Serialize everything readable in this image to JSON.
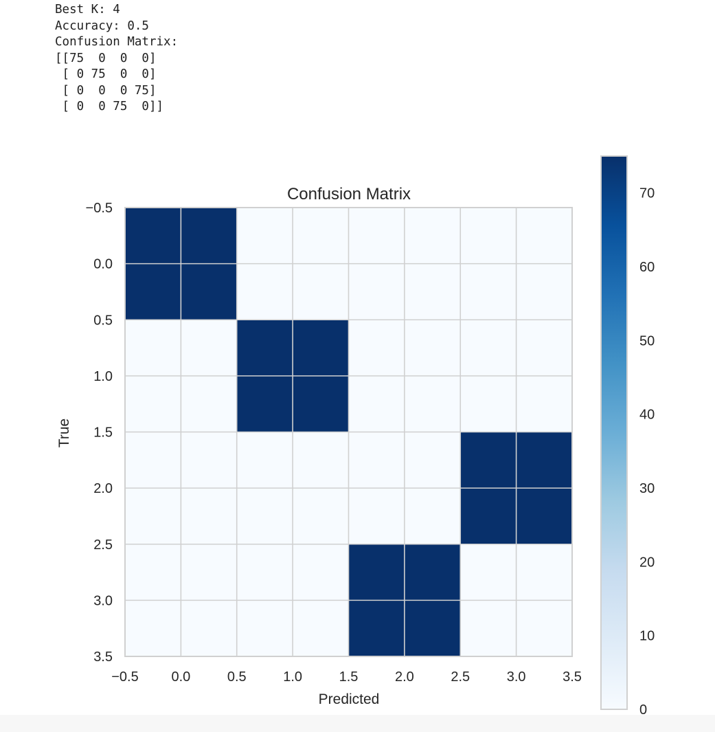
{
  "console_output": {
    "lines": [
      "Best K: 4",
      "Accuracy: 0.5",
      "Confusion Matrix:",
      "[[75  0  0  0]",
      " [ 0 75  0  0]",
      " [ 0  0  0 75]",
      " [ 0  0 75  0]]"
    ]
  },
  "chart_data": {
    "type": "heatmap",
    "title": "Confusion Matrix",
    "xlabel": "Predicted",
    "ylabel": "True",
    "matrix": [
      [
        75,
        0,
        0,
        0
      ],
      [
        0,
        75,
        0,
        0
      ],
      [
        0,
        0,
        0,
        75
      ],
      [
        0,
        0,
        75,
        0
      ]
    ],
    "xlim": [
      -0.5,
      3.5
    ],
    "ylim": [
      3.5,
      -0.5
    ],
    "xticks": [
      "−0.5",
      "0.0",
      "0.5",
      "1.0",
      "1.5",
      "2.0",
      "2.5",
      "3.0",
      "3.5"
    ],
    "yticks": [
      "−0.5",
      "0.0",
      "0.5",
      "1.0",
      "1.5",
      "2.0",
      "2.5",
      "3.0",
      "3.5"
    ],
    "colorbar": {
      "colormap": "Blues",
      "range": [
        0,
        75
      ],
      "ticks": [
        "0",
        "10",
        "20",
        "30",
        "40",
        "50",
        "60",
        "70"
      ]
    },
    "grid": true,
    "colors": {
      "low": "#f7fbff",
      "high": "#08306b",
      "grid": "#d0d0d0"
    }
  }
}
